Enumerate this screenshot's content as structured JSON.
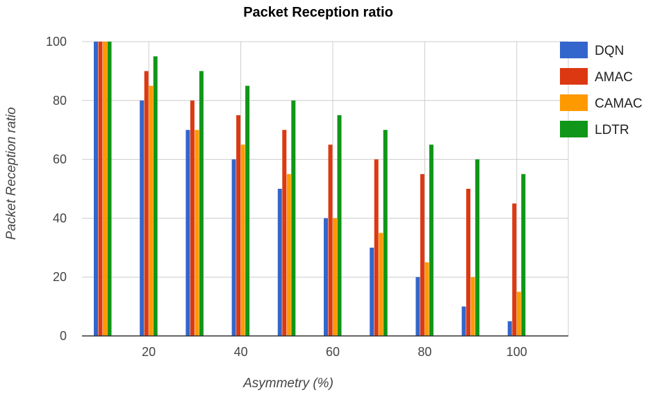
{
  "chart_data": {
    "type": "bar",
    "title": "Packet Reception ratio",
    "xlabel": "Asymmetry (%)",
    "ylabel": "Packet Reception ratio",
    "ylim": [
      0,
      100
    ],
    "yticks": [
      "0",
      "20",
      "40",
      "60",
      "80",
      "100"
    ],
    "categories": [
      10,
      20,
      30,
      40,
      50,
      60,
      70,
      80,
      90,
      100
    ],
    "xticks": [
      "20",
      "40",
      "60",
      "80",
      "100"
    ],
    "grid": true,
    "legend_position": "right",
    "series": [
      {
        "name": "DQN",
        "color": "#3366cc",
        "values": [
          100,
          80,
          70,
          60,
          50,
          40,
          30,
          20,
          10,
          5
        ]
      },
      {
        "name": "AMAC",
        "color": "#dc3912",
        "values": [
          100,
          90,
          80,
          75,
          70,
          65,
          60,
          55,
          50,
          45
        ]
      },
      {
        "name": "CAMAC",
        "color": "#ff9900",
        "values": [
          100,
          85,
          70,
          65,
          55,
          40,
          35,
          25,
          20,
          15
        ]
      },
      {
        "name": "LDTR",
        "color": "#109618",
        "values": [
          100,
          95,
          90,
          85,
          80,
          75,
          70,
          65,
          60,
          55
        ]
      }
    ]
  }
}
